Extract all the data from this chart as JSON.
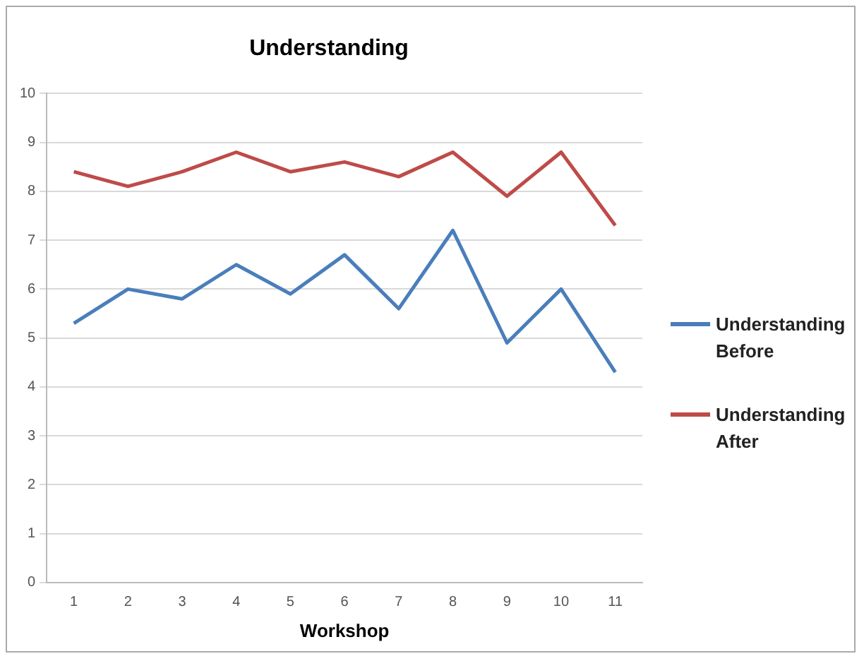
{
  "chart_data": {
    "type": "line",
    "title": "Understanding",
    "xlabel": "Workshop",
    "categories": [
      "1",
      "2",
      "3",
      "4",
      "5",
      "6",
      "7",
      "8",
      "9",
      "10",
      "11"
    ],
    "series": [
      {
        "name": "Understanding Before",
        "color": "#4a7ebb",
        "values": [
          5.3,
          6.0,
          5.8,
          6.5,
          5.9,
          6.7,
          5.6,
          7.2,
          4.9,
          6.0,
          4.3
        ]
      },
      {
        "name": "Understanding After",
        "color": "#be4b48",
        "values": [
          8.4,
          8.1,
          8.4,
          8.8,
          8.4,
          8.6,
          8.3,
          8.8,
          7.9,
          8.8,
          7.3
        ]
      }
    ],
    "ylim": [
      0,
      10
    ],
    "yticks": [
      0,
      1,
      2,
      3,
      4,
      5,
      6,
      7,
      8,
      9,
      10
    ],
    "grid": "y",
    "legend": "right",
    "marker": "none",
    "line_style": "solid"
  }
}
